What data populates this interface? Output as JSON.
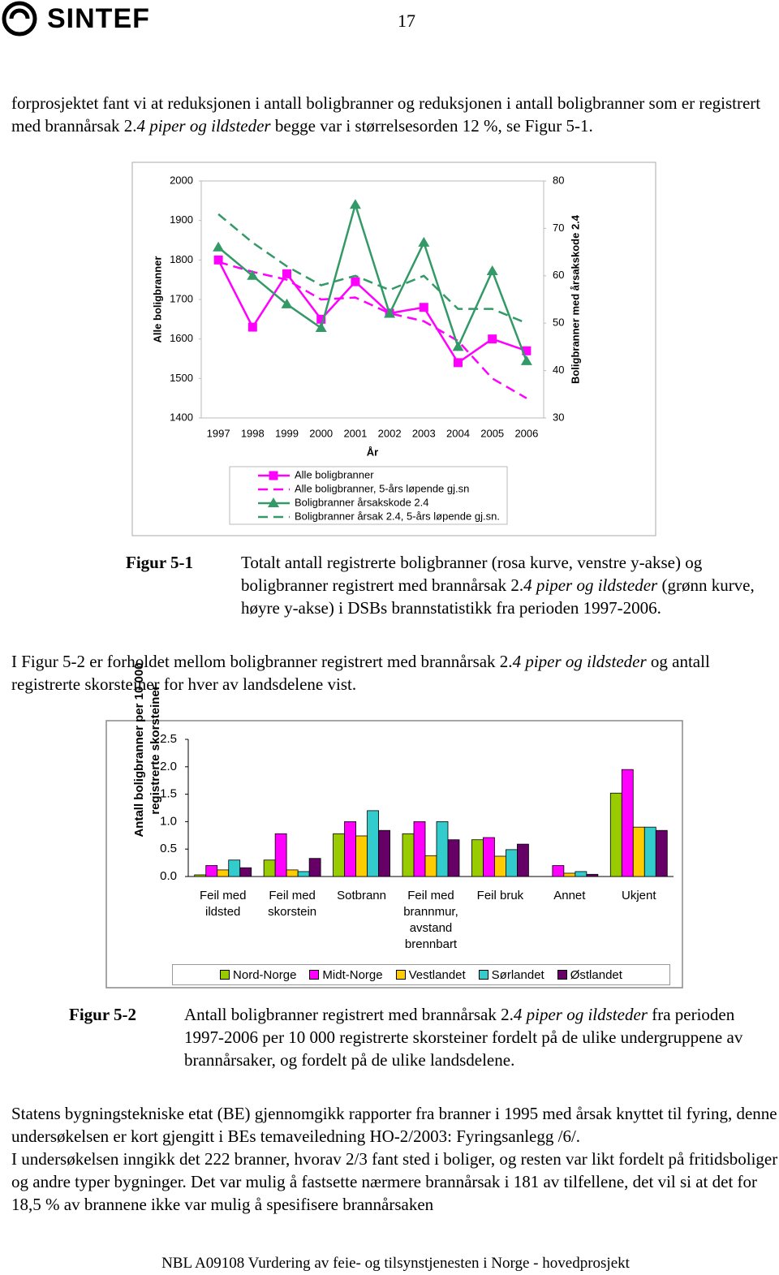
{
  "header": {
    "logo": "SINTEF",
    "page_number": "17"
  },
  "paragraphs": [
    [
      "forprosjektet fant vi at reduksjonen i antall boligbranner og reduksjonen i antall boligbranner som er registrert med brannårsak 2.",
      {
        "text": "4 piper og ildsteder",
        "italic": true
      },
      " begge var i størrelsesorden 12 %, se Figur 5-1."
    ],
    [
      "I Figur 5-2 er forholdet mellom boligbranner registrert med brannårsak 2.",
      {
        "text": "4 piper og ildsteder",
        "italic": true
      },
      " og antall registrerte skorsteiner for hver av landsdelene vist."
    ],
    [
      "Statens bygningstekniske etat (BE) gjennomgikk rapporter fra branner i 1995 med årsak knyttet til fyring, denne undersøkelsen er kort gjengitt i BEs temaveiledning HO-2/2003: Fyringsanlegg /6/."
    ],
    [
      "I undersøkelsen inngikk det 222 branner, hvorav 2/3 fant sted i boliger, og resten var likt fordelt på fritidsboliger og andre typer bygninger. Det var mulig å fastsette nærmere brannårsak i 181 av tilfellene, det vil si at det for 18,5 % av brannene ikke var mulig å spesifisere brannårsaken"
    ]
  ],
  "figures": [
    {
      "label": "Figur 5-1",
      "caption": [
        "Totalt antall registrerte boligbranner (rosa kurve, venstre y-akse) og boligbranner registrert med brannårsak 2.",
        {
          "text": "4 piper og ildsteder",
          "italic": true
        },
        " (grønn kurve, høyre y-akse) i DSBs brannstatistikk fra perioden 1997-2006."
      ]
    },
    {
      "label": "Figur 5-2",
      "caption": [
        "Antall boligbranner registrert med brannårsak 2.",
        {
          "text": "4 piper og ildsteder",
          "italic": true
        },
        " fra perioden 1997-2006 per 10 000 registrerte skorsteiner fordelt på de ulike undergruppene av brannårsaker, og fordelt på de ulike landsdelene."
      ]
    }
  ],
  "footer": "NBL A09108 Vurdering av feie- og tilsynstjenesten i Norge - hovedprosjekt",
  "chart_data": [
    {
      "type": "line",
      "xlabel": "År",
      "ylabel": "Alle boligbranner",
      "y2label": "Boligbranner med årsakskode 2.4",
      "categories": [
        "1997",
        "1998",
        "1999",
        "2000",
        "2001",
        "2002",
        "2003",
        "2004",
        "2005",
        "2006"
      ],
      "ylim": [
        1400,
        2000
      ],
      "yticks": [
        1400,
        1500,
        1600,
        1700,
        1800,
        1900,
        2000
      ],
      "y2lim": [
        30,
        80
      ],
      "y2ticks": [
        30,
        40,
        50,
        60,
        70,
        80
      ],
      "legend": "bottom",
      "series": [
        {
          "name": "Alle boligbranner",
          "color": "#ff00ff",
          "marker": "square",
          "dashed": false,
          "values": [
            1800,
            1630,
            1765,
            1650,
            1745,
            1665,
            1680,
            1540,
            1600,
            1570
          ]
        },
        {
          "name": "Alle boligbranner, 5-års løpende gj.sn",
          "color": "#ff00ff",
          "marker": "none",
          "dashed": true,
          "values": [
            1795,
            1770,
            1750,
            1700,
            1705,
            1665,
            1645,
            1595,
            1500,
            1450
          ]
        },
        {
          "name": "Boligbranner årsakskode 2.4",
          "color": "#339966",
          "marker": "triangle",
          "dashed": false,
          "axis": "y2",
          "values": [
            66,
            60,
            54,
            49,
            75,
            52,
            67,
            45,
            61,
            42
          ]
        },
        {
          "name": "Boligbranner årsak 2.4, 5-års løpende gj.sn.",
          "color": "#339966",
          "marker": "none",
          "dashed": true,
          "axis": "y2",
          "values": [
            73,
            67,
            62,
            58,
            60,
            57,
            60,
            53,
            53,
            50
          ]
        }
      ]
    },
    {
      "type": "bar",
      "ylabel": "Antall boligbranner per 10 000 registrerte skorsteiner",
      "categories": [
        "Feil med ildsted",
        "Feil med skorstein",
        "Sotbrann",
        "Feil med brannmur, avstand brennbart",
        "Feil bruk",
        "Annet",
        "Ukjent"
      ],
      "ylim": [
        0,
        2.5
      ],
      "yticks": [
        {
          "value": 0,
          "label": "0.0"
        },
        0.5,
        {
          "value": 1,
          "label": "1.0"
        },
        1.5,
        {
          "value": 2,
          "label": "2.0"
        },
        2.5
      ],
      "legend": "bottom",
      "series": [
        {
          "name": "Nord-Norge",
          "color": "#99cc00",
          "values": [
            0.03,
            0.3,
            0.78,
            0.78,
            0.67,
            0,
            1.52
          ]
        },
        {
          "name": "Midt-Norge",
          "color": "#ff00ff",
          "values": [
            0.2,
            0.78,
            1.0,
            1.0,
            0.71,
            0.2,
            1.95
          ]
        },
        {
          "name": "Vestlandet",
          "color": "#ffcc00",
          "values": [
            0.12,
            0.12,
            0.74,
            0.38,
            0.37,
            0.06,
            0.9
          ]
        },
        {
          "name": "Sørlandet",
          "color": "#33cccc",
          "values": [
            0.3,
            0.09,
            1.2,
            1.0,
            0.49,
            0.09,
            0.9
          ]
        },
        {
          "name": "Østlandet",
          "color": "#660066",
          "values": [
            0.16,
            0.33,
            0.84,
            0.67,
            0.59,
            0.04,
            0.84
          ]
        }
      ]
    }
  ]
}
